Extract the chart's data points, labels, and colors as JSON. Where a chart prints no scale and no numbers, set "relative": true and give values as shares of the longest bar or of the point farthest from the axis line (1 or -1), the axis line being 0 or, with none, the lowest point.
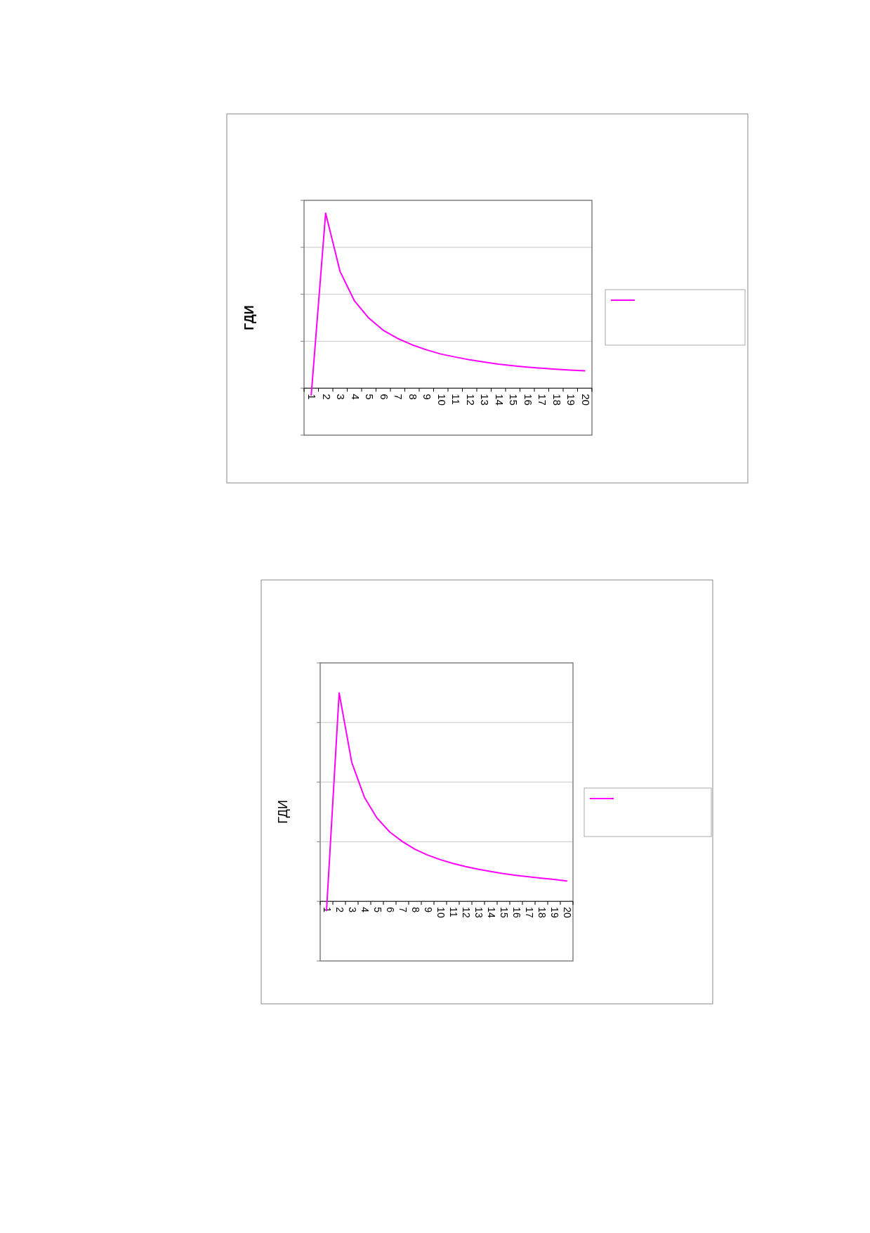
{
  "chart_data": [
    {
      "type": "line",
      "title": "ГДИ",
      "relative": true,
      "grid": "y",
      "categories": [
        "1",
        "2",
        "3",
        "4",
        "5",
        "6",
        "7",
        "8",
        "9",
        "10",
        "11",
        "12",
        "13",
        "14",
        "15",
        "16",
        "17",
        "18",
        "19",
        "20"
      ],
      "series": [
        {
          "color": "#ff00ff",
          "values": [
            -0.039,
            1,
            0.667,
            0.499,
            0.4,
            0.331,
            0.284,
            0.248,
            0.219,
            0.195,
            0.178,
            0.162,
            0.149,
            0.137,
            0.128,
            0.12,
            0.114,
            0.108,
            0.103,
            0.099
          ]
        }
      ]
    },
    {
      "type": "line",
      "title": "ГДИ",
      "relative": true,
      "grid": "y",
      "categories": [
        "1",
        "2",
        "3",
        "4",
        "5",
        "6",
        "7",
        "8",
        "9",
        "10",
        "11",
        "12",
        "13",
        "14",
        "15",
        "16",
        "17",
        "18",
        "19",
        "20"
      ],
      "series": [
        {
          "color": "#ff00ff",
          "values": [
            -0.045,
            1,
            0.666,
            0.499,
            0.399,
            0.333,
            0.287,
            0.25,
            0.222,
            0.2,
            0.182,
            0.167,
            0.154,
            0.143,
            0.133,
            0.125,
            0.118,
            0.111,
            0.105,
            0.098
          ]
        }
      ]
    }
  ]
}
